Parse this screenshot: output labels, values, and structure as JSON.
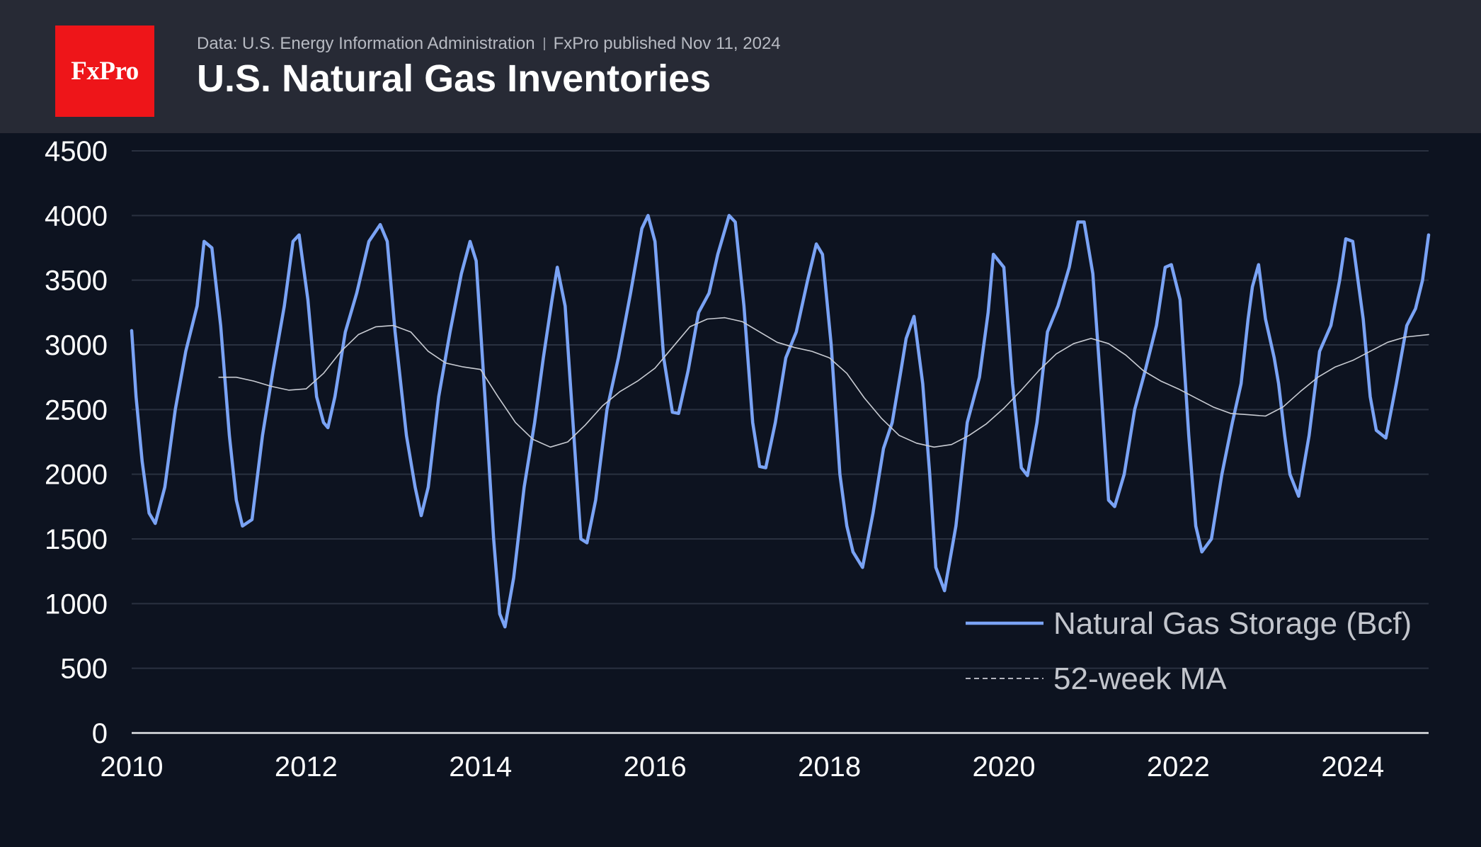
{
  "header": {
    "logo_text": "FxPro",
    "source": "Data: U.S. Energy Information Administration",
    "published": "FxPro published Nov 11, 2024",
    "title": "U.S. Natural Gas Inventories"
  },
  "colors": {
    "background": "#0d1320",
    "header_background": "#272a35",
    "logo_red": "#ee1519",
    "storage_line": "#7aa3f5",
    "ma_line": "#c9ccd3",
    "grid": "#2a3140",
    "axis_text": "#ffffff",
    "legend_text": "#c2c5cc"
  },
  "chart_data": {
    "type": "line",
    "title": "U.S. Natural Gas Inventories",
    "xlabel": "",
    "ylabel": "",
    "xlim": [
      2010.0,
      2024.87
    ],
    "ylim": [
      0,
      4500
    ],
    "x_ticks": [
      "2010",
      "2012",
      "2014",
      "2016",
      "2018",
      "2020",
      "2022",
      "2024"
    ],
    "y_ticks": [
      "0",
      "500",
      "1000",
      "1500",
      "2000",
      "2500",
      "3000",
      "3500",
      "4000",
      "4500"
    ],
    "grid": true,
    "legend_position": "bottom-right",
    "series": [
      {
        "name": "Natural Gas Storage (Bcf)",
        "style": "solid",
        "x": [
          2010.0,
          2010.05,
          2010.12,
          2010.2,
          2010.27,
          2010.38,
          2010.5,
          2010.62,
          2010.75,
          2010.83,
          2010.92,
          2011.02,
          2011.12,
          2011.2,
          2011.27,
          2011.38,
          2011.5,
          2011.62,
          2011.75,
          2011.85,
          2011.92,
          2012.02,
          2012.12,
          2012.2,
          2012.25,
          2012.33,
          2012.45,
          2012.58,
          2012.72,
          2012.85,
          2012.93,
          2013.02,
          2013.15,
          2013.25,
          2013.32,
          2013.4,
          2013.52,
          2013.65,
          2013.78,
          2013.88,
          2013.95,
          2014.05,
          2014.15,
          2014.22,
          2014.28,
          2014.38,
          2014.5,
          2014.62,
          2014.72,
          2014.82,
          2014.88,
          2014.97,
          2015.07,
          2015.15,
          2015.22,
          2015.32,
          2015.45,
          2015.58,
          2015.72,
          2015.85,
          2015.92,
          2016.0,
          2016.1,
          2016.2,
          2016.27,
          2016.38,
          2016.5,
          2016.62,
          2016.72,
          2016.85,
          2016.92,
          2017.02,
          2017.12,
          2017.2,
          2017.27,
          2017.38,
          2017.5,
          2017.62,
          2017.75,
          2017.85,
          2017.92,
          2018.02,
          2018.12,
          2018.2,
          2018.27,
          2018.38,
          2018.5,
          2018.62,
          2018.72,
          2018.82,
          2018.88,
          2018.97,
          2019.07,
          2019.15,
          2019.22,
          2019.32,
          2019.45,
          2019.58,
          2019.72,
          2019.82,
          2019.88,
          2020.0,
          2020.1,
          2020.2,
          2020.27,
          2020.38,
          2020.5,
          2020.62,
          2020.75,
          2020.85,
          2020.92,
          2021.02,
          2021.12,
          2021.2,
          2021.27,
          2021.38,
          2021.5,
          2021.62,
          2021.75,
          2021.85,
          2021.92,
          2022.02,
          2022.12,
          2022.2,
          2022.27,
          2022.38,
          2022.5,
          2022.62,
          2022.72,
          2022.8,
          2022.85,
          2022.92,
          2023.0,
          2023.1,
          2023.15,
          2023.22,
          2023.28,
          2023.38,
          2023.5,
          2023.62,
          2023.75,
          2023.85,
          2023.92,
          2024.0,
          2024.12,
          2024.2,
          2024.27,
          2024.38,
          2024.5,
          2024.62,
          2024.72,
          2024.8,
          2024.87
        ],
        "y": [
          3110,
          2600,
          2100,
          1700,
          1620,
          1900,
          2500,
          2950,
          3300,
          3800,
          3750,
          3150,
          2300,
          1800,
          1600,
          1650,
          2300,
          2800,
          3300,
          3800,
          3850,
          3350,
          2600,
          2400,
          2360,
          2600,
          3100,
          3400,
          3800,
          3930,
          3800,
          3100,
          2300,
          1900,
          1680,
          1900,
          2600,
          3100,
          3550,
          3800,
          3650,
          2600,
          1500,
          920,
          820,
          1200,
          1900,
          2400,
          2900,
          3350,
          3600,
          3300,
          2300,
          1500,
          1470,
          1800,
          2500,
          2900,
          3400,
          3900,
          4000,
          3800,
          2900,
          2480,
          2470,
          2800,
          3250,
          3400,
          3700,
          4000,
          3950,
          3300,
          2400,
          2060,
          2050,
          2400,
          2900,
          3100,
          3500,
          3780,
          3700,
          3000,
          2000,
          1600,
          1400,
          1280,
          1700,
          2200,
          2400,
          2800,
          3050,
          3220,
          2700,
          2000,
          1280,
          1100,
          1600,
          2400,
          2750,
          3250,
          3700,
          3600,
          2700,
          2050,
          1990,
          2400,
          3100,
          3300,
          3600,
          3950,
          3950,
          3550,
          2600,
          1800,
          1750,
          2000,
          2500,
          2800,
          3150,
          3600,
          3620,
          3350,
          2300,
          1600,
          1400,
          1500,
          2000,
          2400,
          2700,
          3200,
          3450,
          3620,
          3200,
          2900,
          2700,
          2300,
          2000,
          1830,
          2300,
          2950,
          3150,
          3500,
          3820,
          3800,
          3200,
          2600,
          2340,
          2280,
          2700,
          3150,
          3280,
          3500,
          3850
        ]
      },
      {
        "name": "52-week MA",
        "style": "dashed",
        "x": [
          2011.0,
          2011.2,
          2011.4,
          2011.6,
          2011.8,
          2012.0,
          2012.2,
          2012.4,
          2012.6,
          2012.8,
          2013.0,
          2013.2,
          2013.4,
          2013.6,
          2013.8,
          2014.0,
          2014.2,
          2014.4,
          2014.6,
          2014.8,
          2015.0,
          2015.2,
          2015.4,
          2015.6,
          2015.8,
          2016.0,
          2016.2,
          2016.4,
          2016.6,
          2016.8,
          2017.0,
          2017.2,
          2017.4,
          2017.6,
          2017.8,
          2018.0,
          2018.2,
          2018.4,
          2018.6,
          2018.8,
          2019.0,
          2019.2,
          2019.4,
          2019.6,
          2019.8,
          2020.0,
          2020.2,
          2020.4,
          2020.6,
          2020.8,
          2021.0,
          2021.2,
          2021.4,
          2021.6,
          2021.8,
          2022.0,
          2022.2,
          2022.4,
          2022.6,
          2022.8,
          2023.0,
          2023.2,
          2023.4,
          2023.6,
          2023.8,
          2024.0,
          2024.2,
          2024.4,
          2024.6,
          2024.87
        ],
        "y": [
          2750,
          2750,
          2720,
          2680,
          2650,
          2660,
          2780,
          2950,
          3080,
          3140,
          3150,
          3100,
          2950,
          2860,
          2830,
          2810,
          2600,
          2400,
          2270,
          2210,
          2250,
          2380,
          2530,
          2640,
          2720,
          2820,
          2980,
          3140,
          3200,
          3210,
          3180,
          3100,
          3020,
          2980,
          2950,
          2900,
          2780,
          2590,
          2430,
          2300,
          2240,
          2210,
          2230,
          2300,
          2390,
          2510,
          2650,
          2800,
          2930,
          3010,
          3050,
          3010,
          2920,
          2800,
          2720,
          2660,
          2590,
          2520,
          2470,
          2460,
          2450,
          2520,
          2640,
          2750,
          2830,
          2880,
          2950,
          3020,
          3060,
          3080
        ]
      }
    ]
  }
}
